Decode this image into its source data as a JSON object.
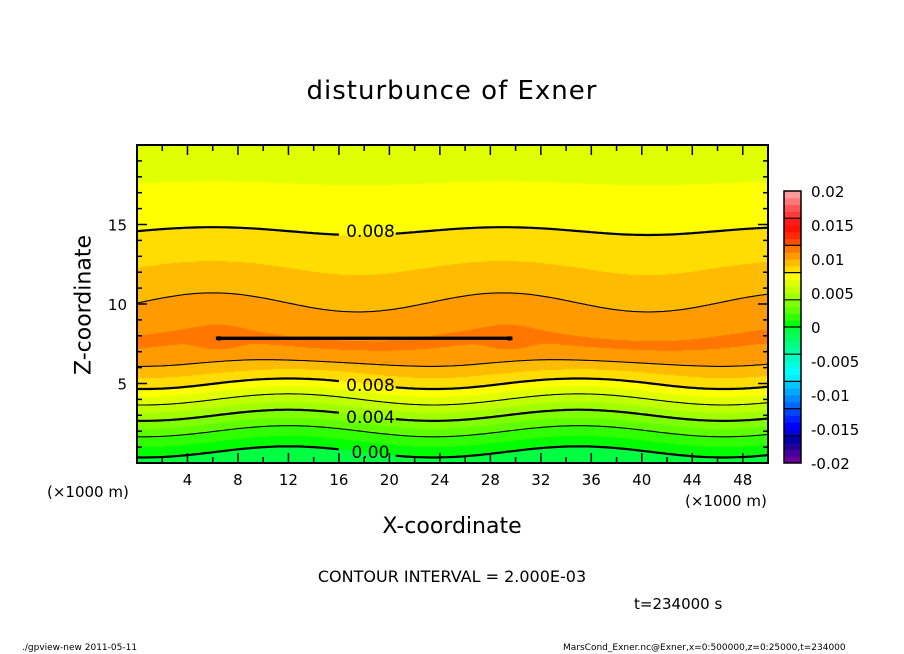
{
  "title": "disturbunce of Exner",
  "footer": {
    "left": "./gpview-new   2011-05-11",
    "right": "MarsCond_Exner.nc@Exner,x=0:500000,z=0:25000,t=234000"
  },
  "contour_interval_text": "CONTOUR INTERVAL = 2.000E-03",
  "time_text": "t=234000 s",
  "chart_data": {
    "type": "heatmap",
    "subtype": "filled contour",
    "title": "disturbunce of Exner",
    "xlabel": "X-coordinate",
    "ylabel": "Z-coordinate",
    "x_unit_text": "(×1000 m)",
    "xlim": [
      0,
      50
    ],
    "ylim": [
      0,
      20
    ],
    "x_ticks": [
      "4",
      "8",
      "12",
      "16",
      "20",
      "24",
      "28",
      "32",
      "36",
      "40",
      "44",
      "48"
    ],
    "x_tick_values": [
      4,
      8,
      12,
      16,
      20,
      24,
      28,
      32,
      36,
      40,
      44,
      48
    ],
    "y_ticks": [
      "5",
      "10",
      "15"
    ],
    "y_tick_values": [
      5,
      10,
      15
    ],
    "contour_interval": 0.002,
    "contour_labels": [
      {
        "text": "0.008",
        "level": 0.008,
        "x": 18.5,
        "z": 14.6
      },
      {
        "text": "0.008",
        "level": 0.008,
        "x": 18.5,
        "z": 4.9
      },
      {
        "text": "0.004",
        "level": 0.004,
        "x": 18.5,
        "z": 2.9
      },
      {
        "text": "0.00",
        "level": 0.0,
        "x": 18.5,
        "z": 0.7
      }
    ],
    "mean_profile": {
      "z": [
        0,
        0.7,
        2,
        3,
        4,
        5,
        6.3,
        7.5,
        9,
        10.1,
        12.3,
        14.6,
        17.6,
        20
      ],
      "value": [
        -0.0006,
        0.0,
        0.002,
        0.004,
        0.006,
        0.008,
        0.01,
        0.0112,
        0.0106,
        0.01,
        0.009,
        0.008,
        0.007,
        0.0063
      ]
    },
    "wave": {
      "wavelength": 23,
      "lower_crest_x": 12,
      "lower_amplitude_z": 0.35,
      "upper_crest_x": 6,
      "upper_amplitude_z": 0.6
    },
    "maxima": [
      {
        "x": 6.5,
        "z": 7.7,
        "value": 0.0115
      },
      {
        "x": 29.5,
        "z": 7.7,
        "value": 0.0115
      }
    ],
    "colorbar": {
      "range": [
        -0.02,
        0.02
      ],
      "step": 0.001,
      "tick_labels": [
        "0.02",
        "0.015",
        "0.01",
        "0.005",
        "0",
        "-0.005",
        "-0.01",
        "-0.015",
        "-0.02"
      ],
      "tick_values": [
        0.02,
        0.015,
        0.01,
        0.005,
        0,
        -0.005,
        -0.01,
        -0.015,
        -0.02
      ],
      "colors_low_to_high": [
        "#660099",
        "#440099",
        "#220099",
        "#0000aa",
        "#0000dd",
        "#0000ff",
        "#0022ff",
        "#0044ff",
        "#0068ff",
        "#0088ff",
        "#00a8ff",
        "#00c8ff",
        "#00f0ff",
        "#00ffff",
        "#00ffe0",
        "#00ffc0",
        "#00ffa0",
        "#00ff80",
        "#00ff60",
        "#00ff40",
        "#00ff00",
        "#30ff00",
        "#60ff00",
        "#80ff00",
        "#a0ff00",
        "#c0ff00",
        "#e0ff00",
        "#ffff00",
        "#ffdd00",
        "#ffbb00",
        "#ff9a00",
        "#ff7700",
        "#ff4a00",
        "#ff2a00",
        "#ff1000",
        "#ff1a1a",
        "#ff3a3a",
        "#ff5555",
        "#ff7777",
        "#ff9a9a"
      ]
    }
  }
}
